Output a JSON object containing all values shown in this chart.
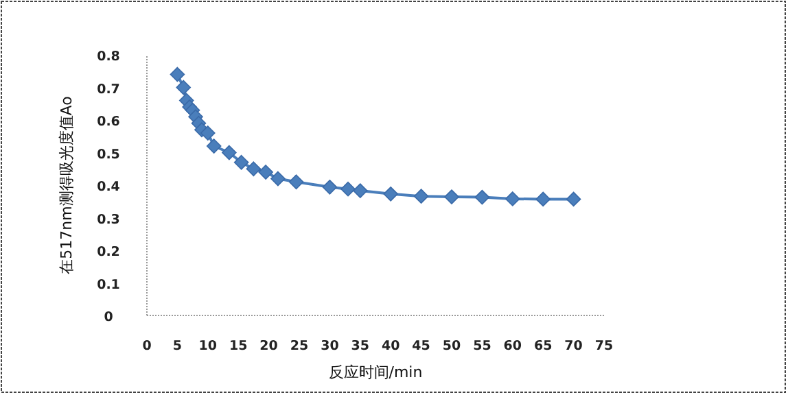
{
  "chart_data": {
    "type": "line",
    "xlabel": "反应时间/min",
    "ylabel": "在517nm测得吸光度值Ao",
    "x": [
      5,
      6,
      6.5,
      7,
      7.5,
      8,
      8.5,
      9,
      10,
      11,
      13.5,
      15.5,
      17.5,
      19.5,
      21.5,
      24.5,
      30,
      33,
      35,
      40,
      45,
      50,
      55,
      60,
      65,
      70
    ],
    "series": [
      {
        "color": "#4a7ebb",
        "values": [
          0.74,
          0.7,
          0.66,
          0.64,
          0.63,
          0.61,
          0.59,
          0.57,
          0.56,
          0.52,
          0.5,
          0.47,
          0.45,
          0.44,
          0.42,
          0.41,
          0.394,
          0.388,
          0.383,
          0.373,
          0.366,
          0.364,
          0.363,
          0.358,
          0.357,
          0.357
        ]
      }
    ],
    "xlim": [
      0,
      75
    ],
    "xticks": [
      0,
      5,
      10,
      15,
      20,
      25,
      30,
      35,
      40,
      45,
      50,
      55,
      60,
      65,
      70,
      75
    ],
    "ylim": [
      0,
      0.8
    ],
    "yticks": [
      0,
      0.1,
      0.2,
      0.3,
      0.4,
      0.5,
      0.6,
      0.7,
      0.8
    ],
    "marker": "diamond",
    "grid": false
  }
}
